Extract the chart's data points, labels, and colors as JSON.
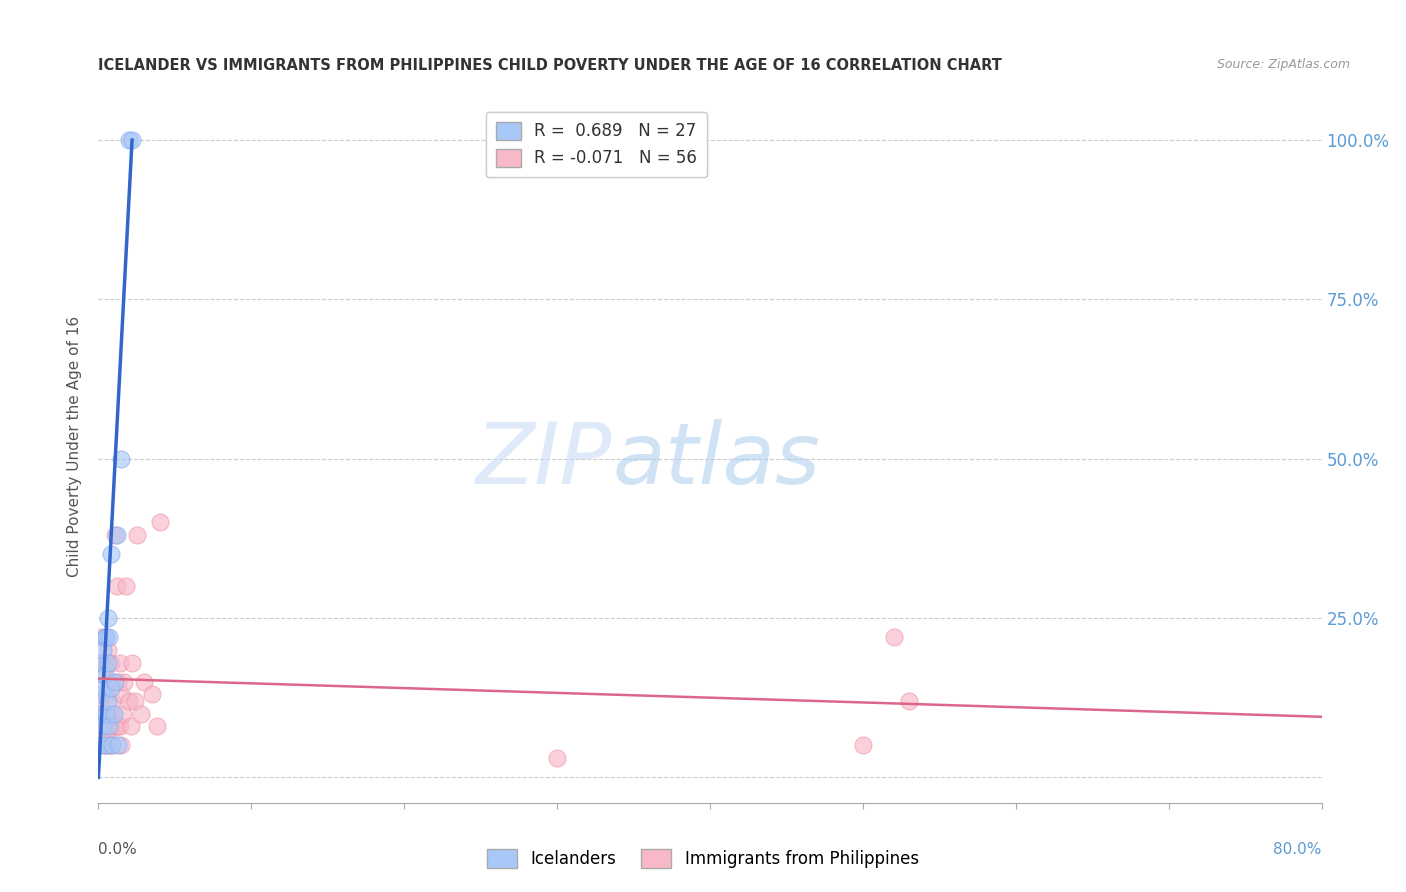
{
  "title": "ICELANDER VS IMMIGRANTS FROM PHILIPPINES CHILD POVERTY UNDER THE AGE OF 16 CORRELATION CHART",
  "source": "Source: ZipAtlas.com",
  "ylabel": "Child Poverty Under the Age of 16",
  "yticks": [
    0.0,
    0.25,
    0.5,
    0.75,
    1.0
  ],
  "ytick_labels_right": [
    "",
    "25.0%",
    "50.0%",
    "75.0%",
    "100.0%"
  ],
  "xlim": [
    0.0,
    0.8
  ],
  "ylim": [
    -0.04,
    1.08
  ],
  "watermark_zip": "ZIP",
  "watermark_atlas": "atlas",
  "icelander_color": "#a8c8f8",
  "philippines_color": "#f8b8c8",
  "icelander_edge_color": "#88aaee",
  "philippines_edge_color": "#ee9aaa",
  "icelander_line_color": "#3366cc",
  "philippines_line_color": "#dd6688",
  "legend_label1": "Icelanders",
  "legend_label2": "Immigrants from Philippines",
  "icelanders_x": [
    0.001,
    0.001,
    0.002,
    0.002,
    0.003,
    0.003,
    0.003,
    0.004,
    0.004,
    0.005,
    0.005,
    0.005,
    0.006,
    0.006,
    0.006,
    0.007,
    0.007,
    0.008,
    0.008,
    0.009,
    0.01,
    0.011,
    0.012,
    0.013,
    0.015,
    0.02,
    0.022
  ],
  "icelanders_y": [
    0.05,
    0.1,
    0.13,
    0.18,
    0.08,
    0.14,
    0.2,
    0.16,
    0.22,
    0.05,
    0.1,
    0.22,
    0.12,
    0.18,
    0.25,
    0.08,
    0.22,
    0.14,
    0.35,
    0.05,
    0.1,
    0.15,
    0.38,
    0.05,
    0.5,
    1.0,
    1.0
  ],
  "philippines_x": [
    0.001,
    0.001,
    0.001,
    0.002,
    0.002,
    0.002,
    0.003,
    0.003,
    0.003,
    0.004,
    0.004,
    0.004,
    0.005,
    0.005,
    0.005,
    0.005,
    0.006,
    0.006,
    0.006,
    0.007,
    0.007,
    0.007,
    0.008,
    0.008,
    0.008,
    0.009,
    0.009,
    0.01,
    0.01,
    0.011,
    0.011,
    0.012,
    0.012,
    0.013,
    0.013,
    0.014,
    0.014,
    0.015,
    0.015,
    0.016,
    0.017,
    0.018,
    0.02,
    0.021,
    0.022,
    0.024,
    0.025,
    0.028,
    0.03,
    0.035,
    0.038,
    0.04,
    0.3,
    0.5,
    0.52,
    0.53
  ],
  "philippines_y": [
    0.05,
    0.1,
    0.18,
    0.08,
    0.12,
    0.22,
    0.06,
    0.1,
    0.16,
    0.05,
    0.1,
    0.18,
    0.05,
    0.08,
    0.13,
    0.22,
    0.06,
    0.1,
    0.2,
    0.05,
    0.1,
    0.15,
    0.05,
    0.1,
    0.18,
    0.05,
    0.12,
    0.08,
    0.15,
    0.08,
    0.38,
    0.08,
    0.3,
    0.08,
    0.15,
    0.08,
    0.18,
    0.05,
    0.13,
    0.1,
    0.15,
    0.3,
    0.12,
    0.08,
    0.18,
    0.12,
    0.38,
    0.1,
    0.15,
    0.13,
    0.08,
    0.4,
    0.03,
    0.05,
    0.22,
    0.12
  ],
  "blue_line_x": [
    0.0,
    0.022
  ],
  "blue_line_y": [
    0.0,
    1.0
  ],
  "pink_line_x": [
    0.0,
    0.8
  ],
  "pink_line_y": [
    0.155,
    0.095
  ],
  "xtick_positions": [
    0.0,
    0.1,
    0.2,
    0.3,
    0.4,
    0.5,
    0.6,
    0.7,
    0.8
  ]
}
